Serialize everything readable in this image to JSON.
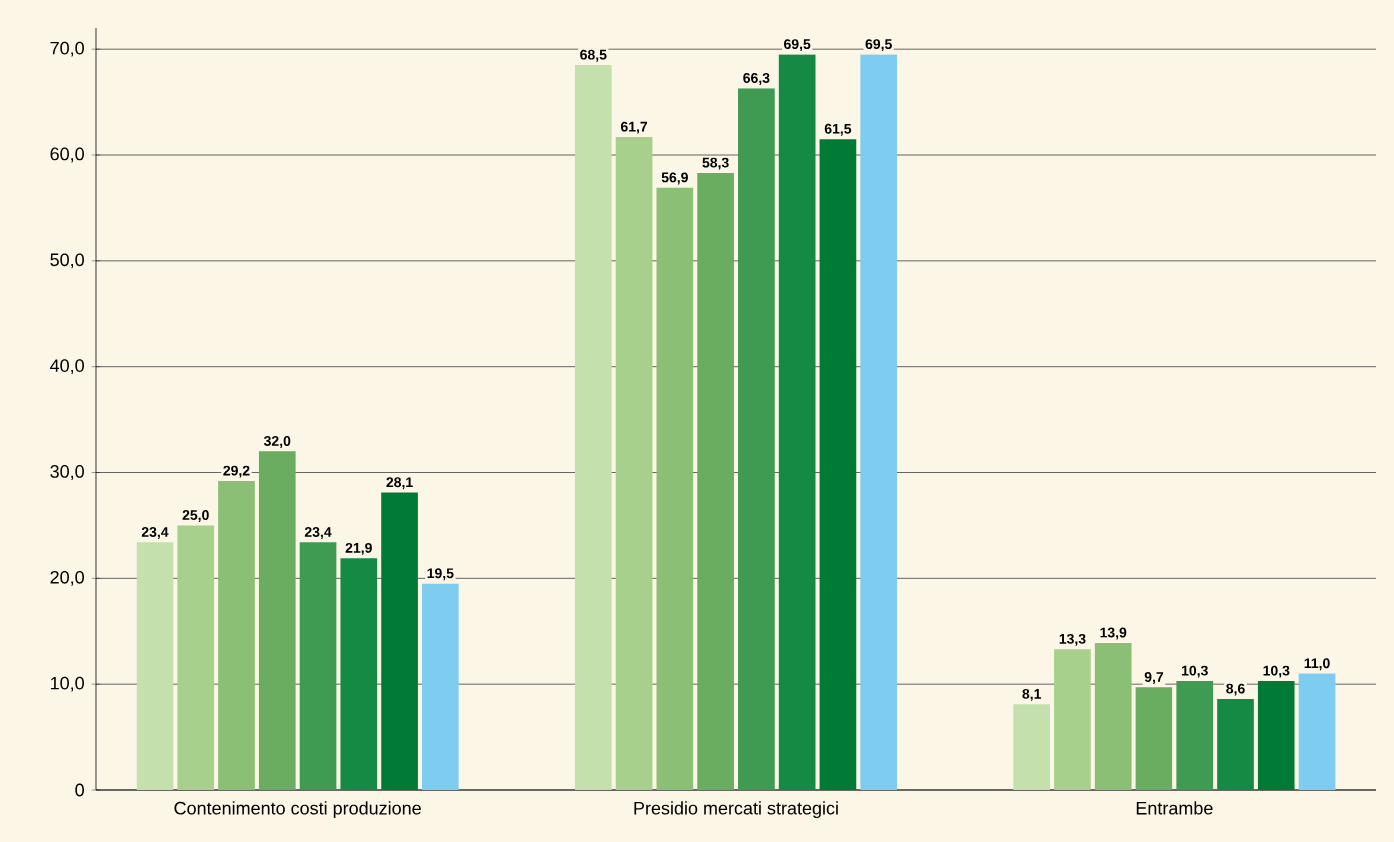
{
  "chart_data": {
    "type": "bar",
    "categories": [
      "Contenimento costi produzione",
      "Presidio mercati strategici",
      "Entrambe"
    ],
    "series": [
      {
        "color": "#c4e0ad",
        "values": [
          23.4,
          68.5,
          8.1
        ],
        "value_labels": [
          "23,4",
          "68,5",
          "8,1"
        ]
      },
      {
        "color": "#a6d08c",
        "values": [
          25.0,
          61.7,
          13.3
        ],
        "value_labels": [
          "25,0",
          "61,7",
          "13,3"
        ]
      },
      {
        "color": "#8bbf75",
        "values": [
          29.2,
          56.9,
          13.9
        ],
        "value_labels": [
          "29,2",
          "56,9",
          "13,9"
        ]
      },
      {
        "color": "#6aad60",
        "values": [
          32.0,
          58.3,
          9.7
        ],
        "value_labels": [
          "32,0",
          "58,3",
          "9,7"
        ]
      },
      {
        "color": "#3f9a52",
        "values": [
          23.4,
          66.3,
          10.3
        ],
        "value_labels": [
          "23,4",
          "66,3",
          "10,3"
        ]
      },
      {
        "color": "#148a45",
        "values": [
          21.9,
          69.5,
          8.6
        ],
        "value_labels": [
          "21,9",
          "69,5",
          "8,6"
        ]
      },
      {
        "color": "#007a35",
        "values": [
          28.1,
          61.5,
          10.3
        ],
        "value_labels": [
          "28,1",
          "61,5",
          "10,3"
        ]
      },
      {
        "color": "#7ecdf0",
        "values": [
          19.5,
          69.5,
          11.0
        ],
        "value_labels": [
          "19,5",
          "69,5",
          "11,0"
        ]
      }
    ],
    "ylim": [
      0,
      72
    ],
    "yticks": [
      0,
      {
        "value": 10,
        "label": "10,0"
      },
      {
        "value": 20,
        "label": "20,0"
      },
      {
        "value": 30,
        "label": "30,0"
      },
      {
        "value": 40,
        "label": "40,0"
      },
      {
        "value": 50,
        "label": "50,0"
      },
      {
        "value": 60,
        "label": "60,0"
      },
      {
        "value": 70,
        "label": "70,0"
      }
    ],
    "grid": "y"
  }
}
